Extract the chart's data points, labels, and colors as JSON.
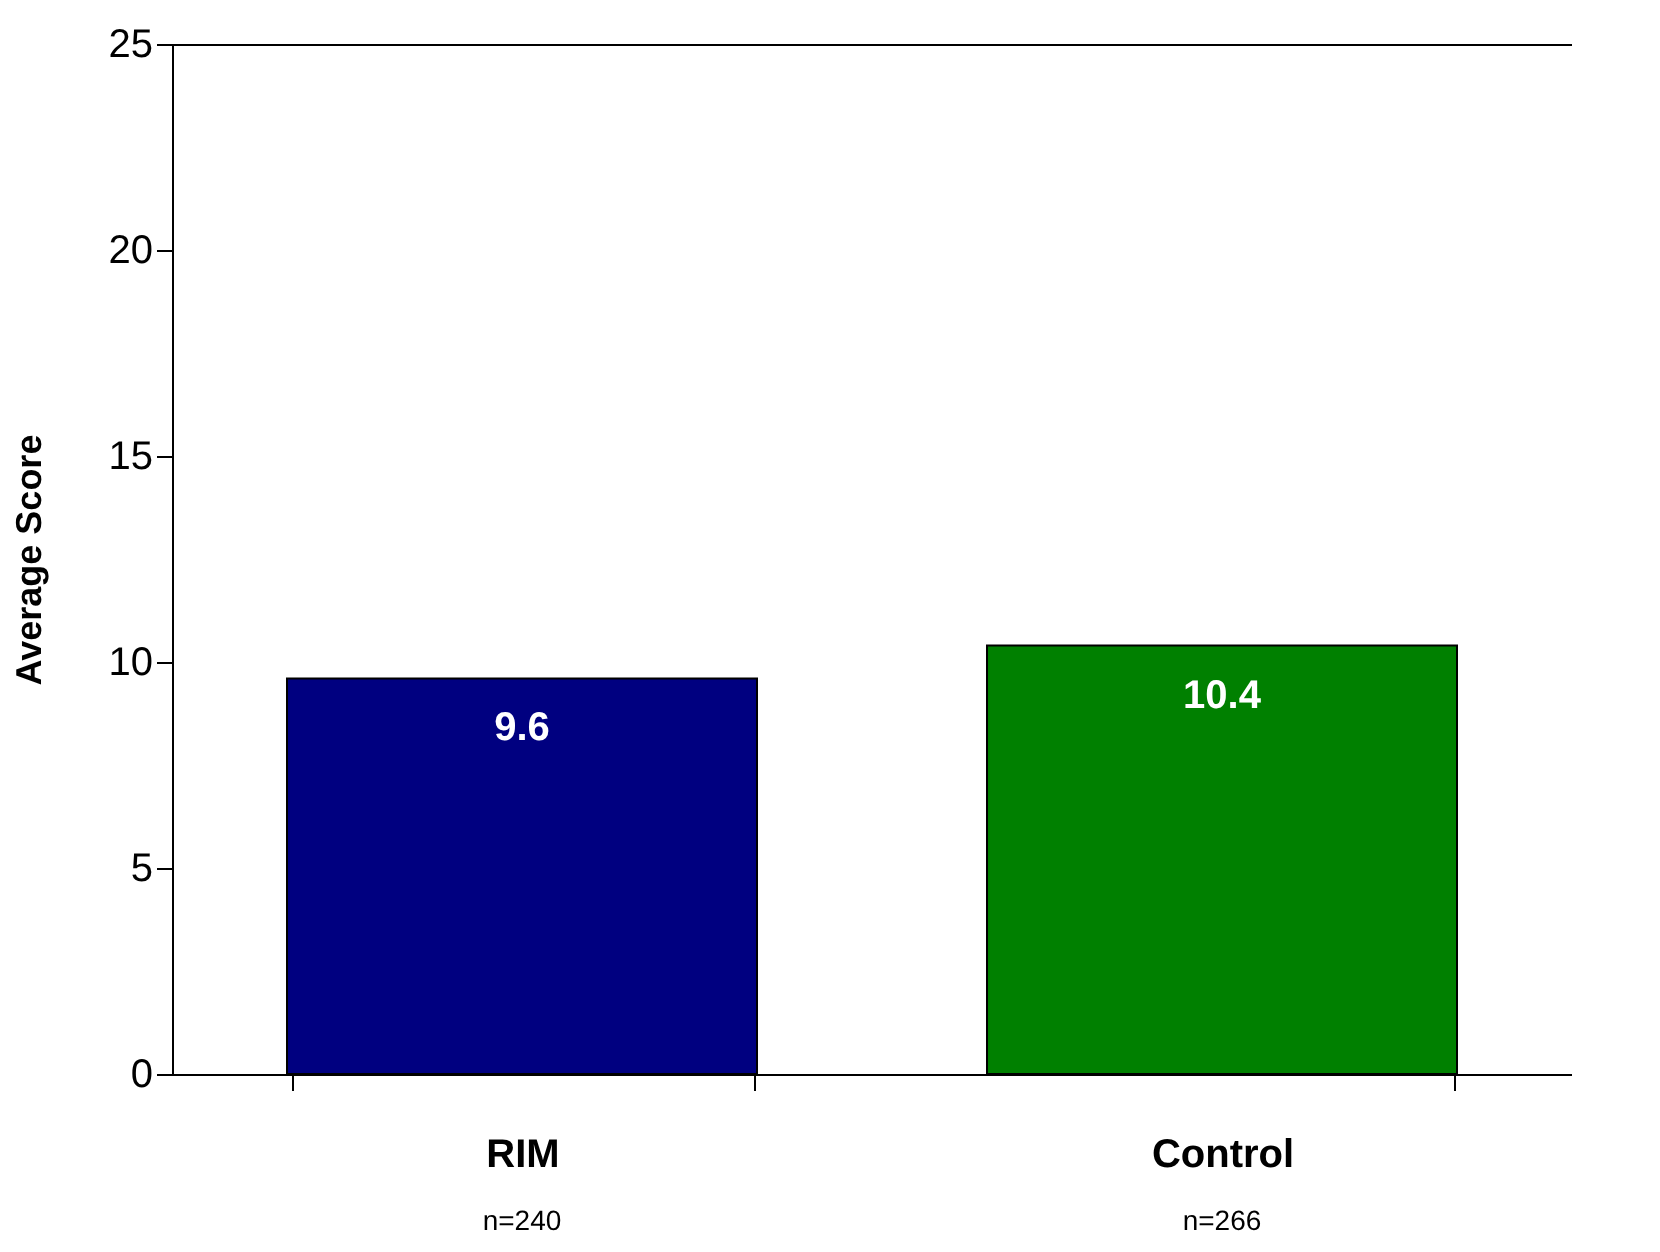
{
  "chart_data": {
    "type": "bar",
    "ylabel": "Average Score",
    "categories": [
      "RIM",
      "Control"
    ],
    "values": [
      9.6,
      10.4
    ],
    "colors": [
      "#000080",
      "#008000"
    ],
    "ylim": [
      0,
      25
    ],
    "yticks": [
      0,
      5,
      10,
      15,
      20,
      25
    ],
    "data_labels": true,
    "grid": false,
    "annotations": [
      "n=240",
      "n=266"
    ]
  }
}
